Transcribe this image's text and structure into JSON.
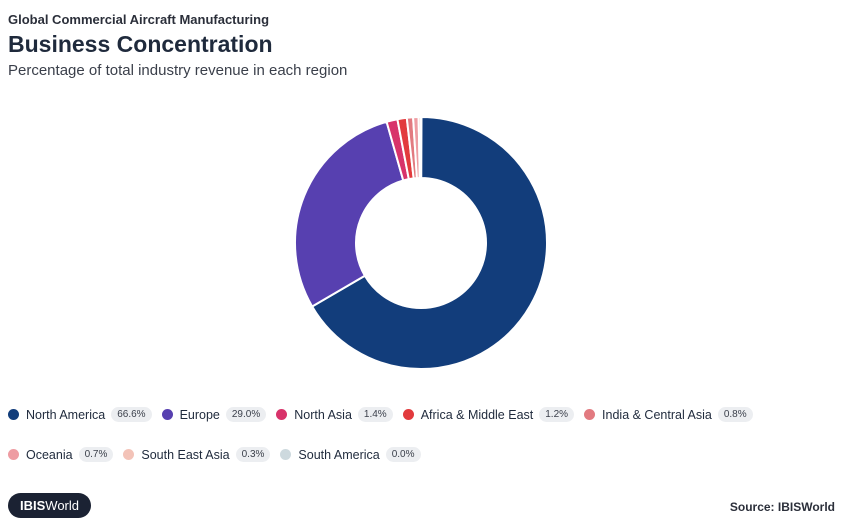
{
  "header": {
    "supertitle": "Global Commercial Aircraft Manufacturing",
    "title": "Business Concentration",
    "subtitle": "Percentage of total industry revenue in each region"
  },
  "chart_data": {
    "type": "pie",
    "donut": true,
    "title": "Business Concentration",
    "subtitle": "Percentage of total industry revenue in each region",
    "slices": [
      {
        "label": "North America",
        "value": 66.6,
        "value_label": "66.6%",
        "color": "#123d7b"
      },
      {
        "label": "Europe",
        "value": 29.0,
        "value_label": "29.0%",
        "color": "#5740b0"
      },
      {
        "label": "North Asia",
        "value": 1.4,
        "value_label": "1.4%",
        "color": "#d8336a"
      },
      {
        "label": "Africa & Middle East",
        "value": 1.2,
        "value_label": "1.2%",
        "color": "#e23a3d"
      },
      {
        "label": "India & Central Asia",
        "value": 0.8,
        "value_label": "0.8%",
        "color": "#e27a80"
      },
      {
        "label": "Oceania",
        "value": 0.7,
        "value_label": "0.7%",
        "color": "#ee9ca2"
      },
      {
        "label": "South East Asia",
        "value": 0.3,
        "value_label": "0.3%",
        "color": "#f3c3b8"
      },
      {
        "label": "South America",
        "value": 0.0,
        "value_label": "0.0%",
        "color": "#cdd9de"
      }
    ],
    "legend_position": "bottom"
  },
  "footer": {
    "logo_text_bold": "IBIS",
    "logo_text_rest": "World",
    "source": "Source: IBISWorld"
  }
}
